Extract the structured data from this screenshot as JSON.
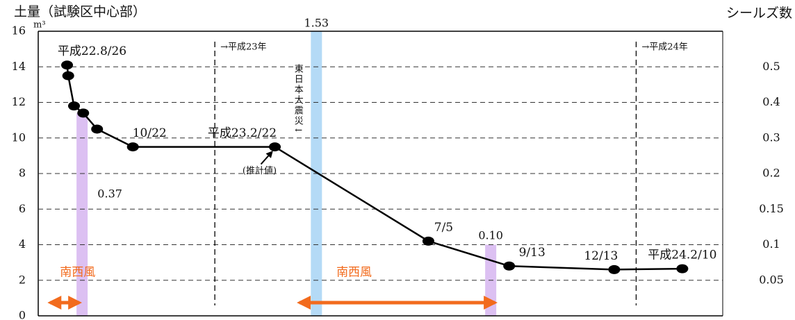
{
  "chart_data": {
    "type": "line",
    "title": "土量（試験区中心部）",
    "y_unit": "m³",
    "y2_title": "シールズ数",
    "xlim": [
      "2010-08-01",
      "2012-03-16"
    ],
    "ylim": [
      0,
      16
    ],
    "yticks": [
      0,
      2,
      4,
      6,
      8,
      10,
      12,
      14,
      16
    ],
    "y2ticks": [
      0.05,
      0.1,
      0.15,
      0.2,
      0.3,
      0.4,
      0.5
    ],
    "y2ticks_labels": [
      "0.05",
      "0.1",
      "0.15",
      "0.2",
      "0.3",
      "0.4",
      "0.5"
    ],
    "grid": true,
    "series": [
      {
        "color": "#000000",
        "x": [
          "2010-08-26",
          "2010-08-27",
          "2010-09-01",
          "2010-09-09",
          "2010-09-21",
          "2010-10-22",
          "2011-02-22",
          "2011-07-05",
          "2011-09-13",
          "2011-12-13",
          "2012-02-10"
        ],
        "values": [
          14.1,
          13.5,
          11.8,
          11.4,
          10.5,
          9.5,
          9.5,
          4.2,
          2.8,
          2.6,
          2.65
        ],
        "point_labels": [
          "平成22.8/26",
          null,
          null,
          null,
          null,
          "10/22",
          "平成23.2/22",
          "7/5",
          "9/13",
          "12/13",
          "平成24.2/10"
        ]
      },
      {
        "type": "bar",
        "axis": "y2",
        "x": [
          "2010-09-08",
          "2011-03-30",
          "2011-08-28"
        ],
        "values": [
          0.37,
          1.53,
          0.1
        ],
        "value_labels": [
          "0.37",
          "1.53",
          "0.10"
        ],
        "colors": [
          "#dcc0f2",
          "#b4daf6",
          "#dcc0f2"
        ]
      }
    ],
    "annotations": {
      "year_lines": [
        {
          "x": "2011-01-01",
          "label": "→平成23年"
        },
        {
          "x": "2012-01-01",
          "label": "→平成24年"
        }
      ],
      "quake": "東日本大震災↓",
      "estimate": "(推計値)",
      "winds": [
        {
          "label": "南西風",
          "x": [
            "2010-08-09",
            "2010-09-08"
          ]
        },
        {
          "label": "南西風",
          "x": [
            "2011-03-13",
            "2011-09-03"
          ]
        }
      ],
      "wind_color": "#f26b1d"
    }
  }
}
